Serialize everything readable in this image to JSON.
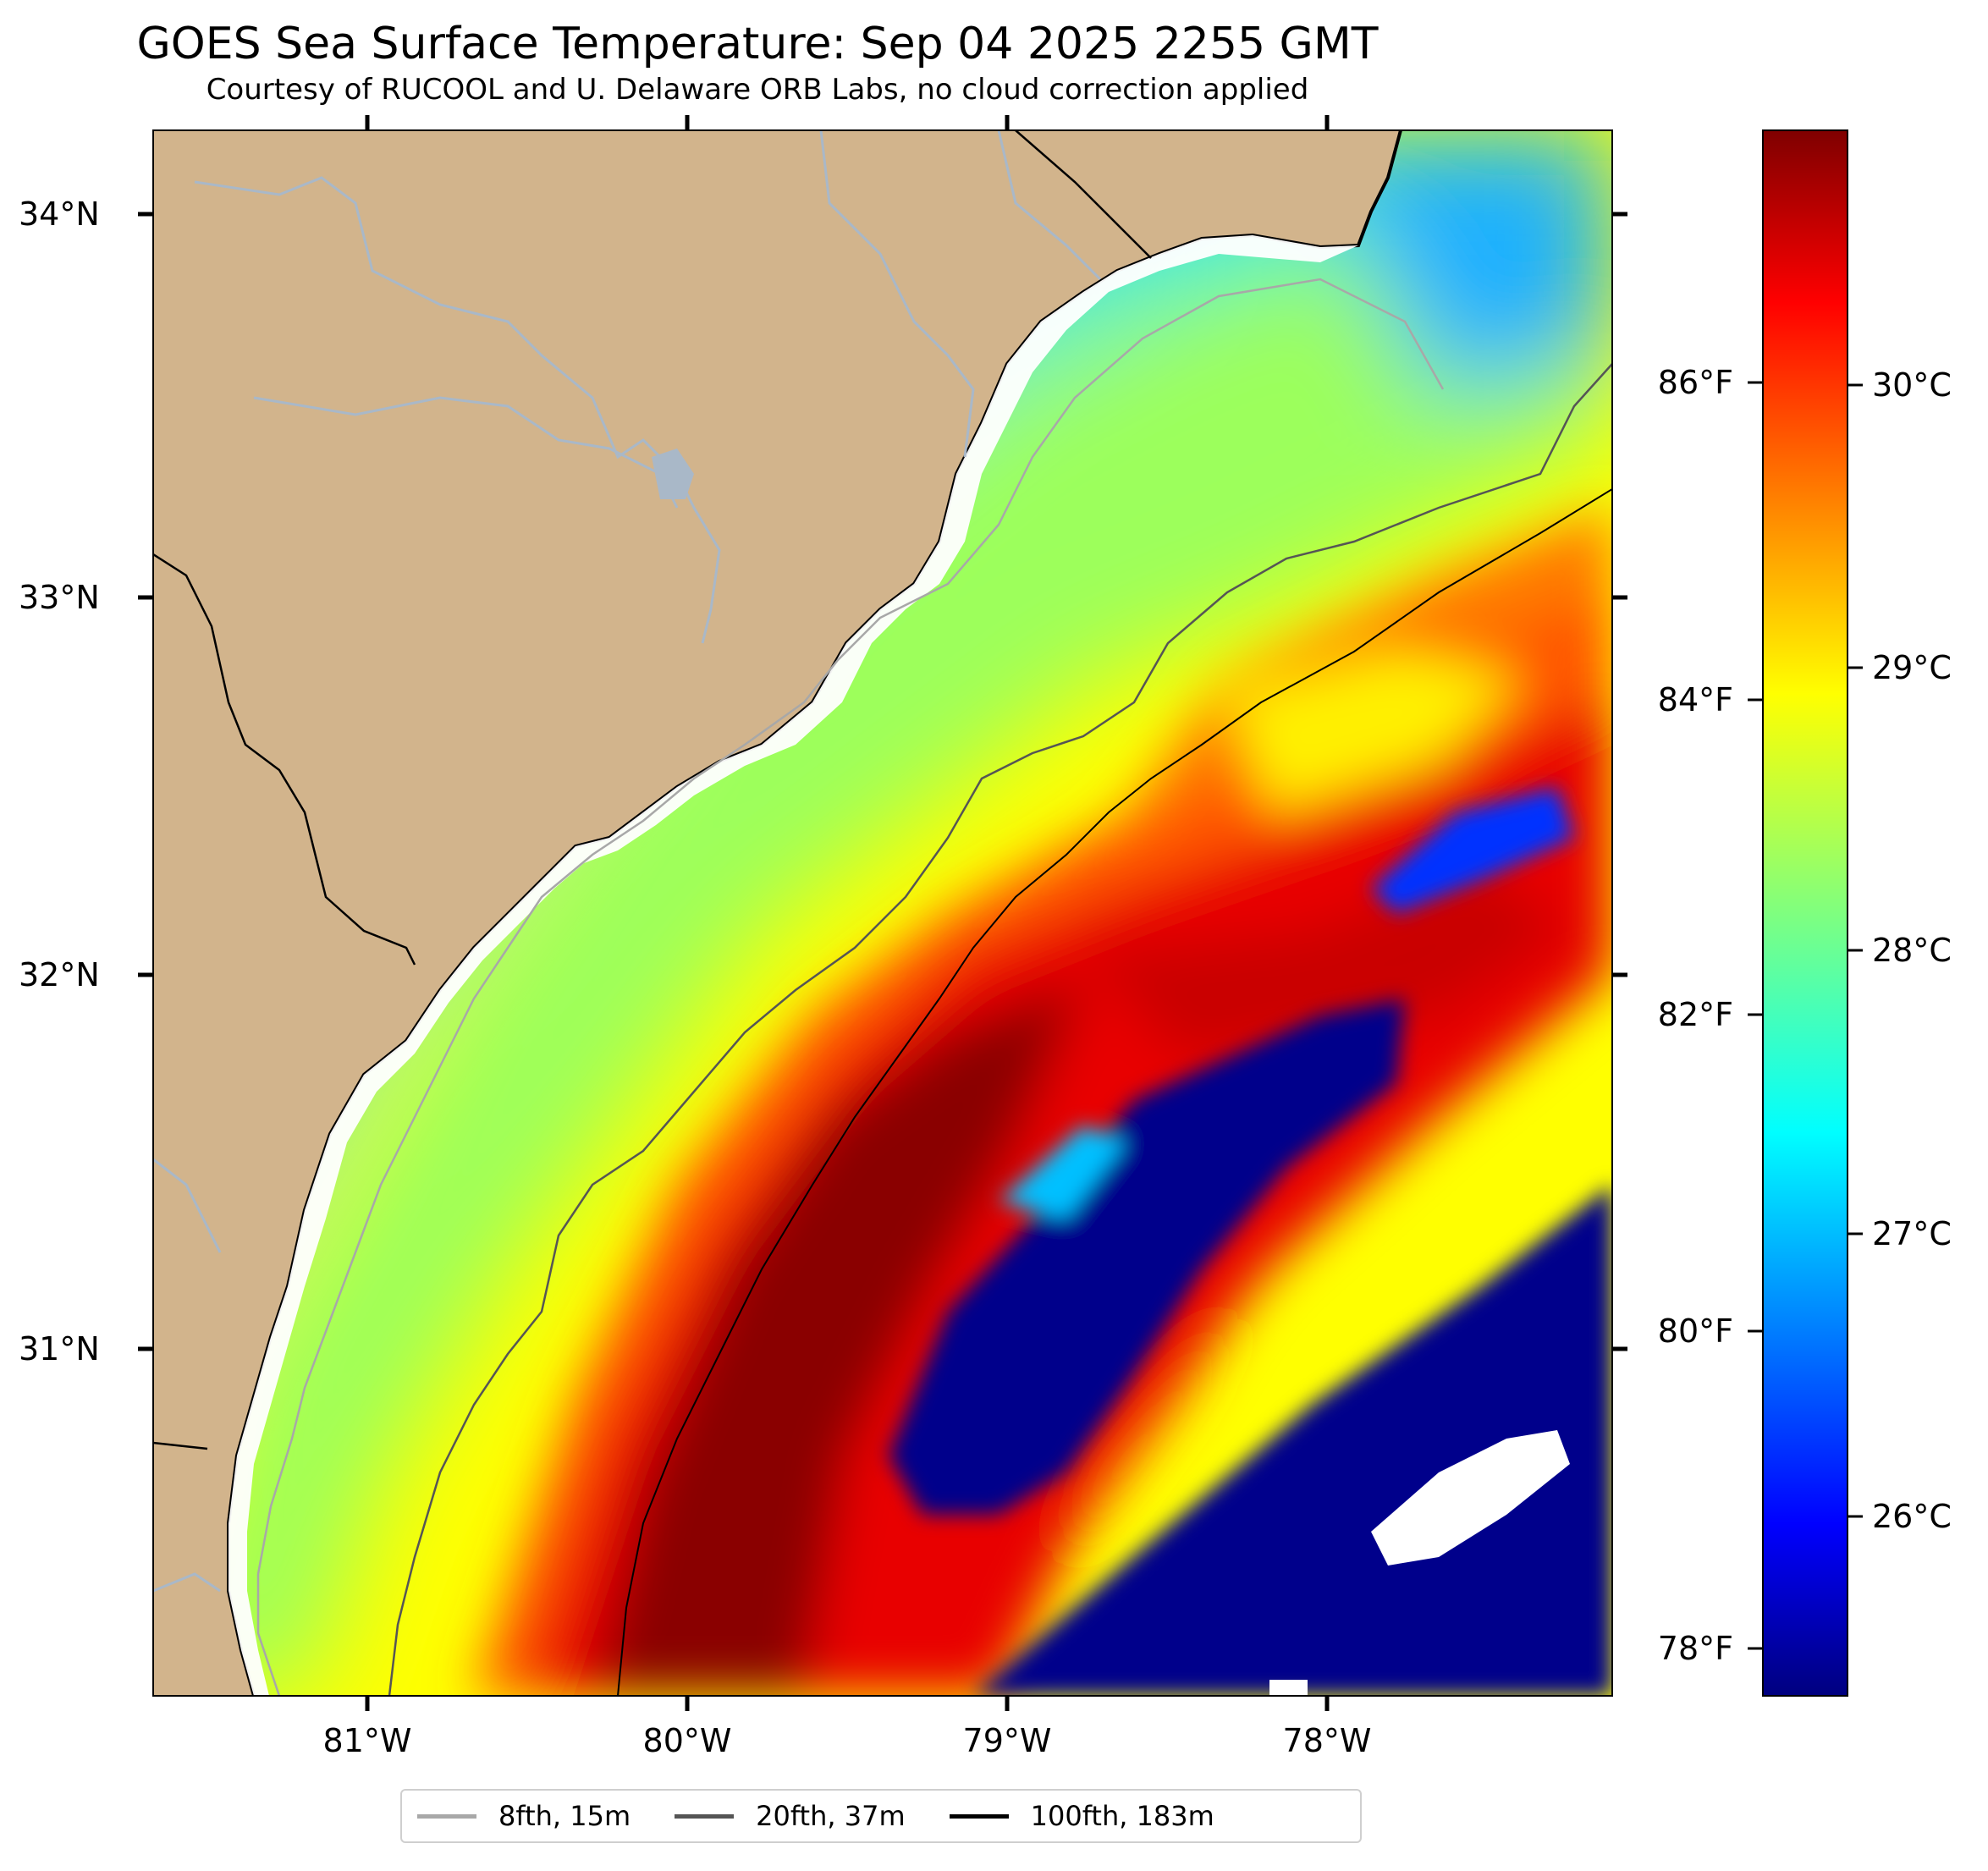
{
  "title": "GOES Sea Surface Temperature: Sep 04 2025 2255 GMT",
  "subtitle": "Courtesy of RUCOOL and U. Delaware ORB Labs, no cloud correction applied",
  "map": {
    "lat_labels": [
      "34°N",
      "33°N",
      "32°N",
      "31°N"
    ],
    "lon_labels": [
      "81°W",
      "80°W",
      "79°W",
      "78°W"
    ],
    "colors": {
      "land": "#d2b48c",
      "cloud_gap": "#ffffff",
      "river": "#a9b8c8",
      "warm_core": "#7f0000",
      "cold_pool": "#00008b"
    }
  },
  "colorbar": {
    "fahrenheit_labels": [
      "86°F",
      "84°F",
      "82°F",
      "80°F",
      "78°F"
    ],
    "celsius_labels": [
      "30°C",
      "29°C",
      "28°C",
      "27°C",
      "26°C"
    ],
    "colormap": "jet"
  },
  "legend": [
    {
      "label": "8fth, 15m",
      "color": "#a8a8a8"
    },
    {
      "label": "20fth, 37m",
      "color": "#555555"
    },
    {
      "label": "100fth, 183m",
      "color": "#000000"
    }
  ]
}
